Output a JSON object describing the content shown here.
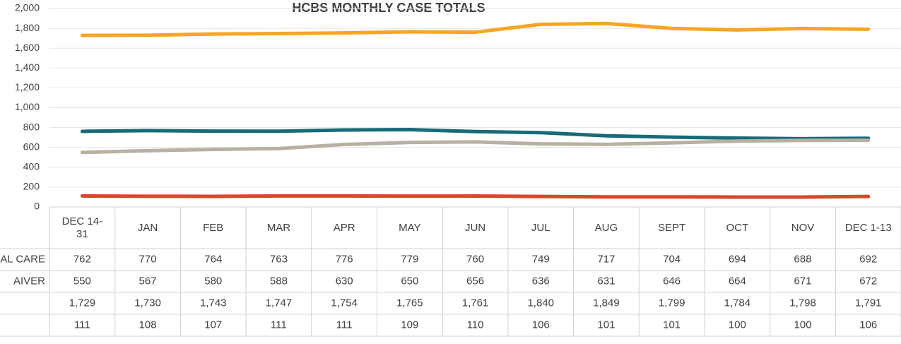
{
  "chart_data": {
    "type": "line",
    "title": "HCBS MONTHLY CASE TOTALS",
    "categories": [
      "DEC 14-31",
      "JAN",
      "FEB",
      "MAR",
      "APR",
      "MAY",
      "JUN",
      "JUL",
      "AUG",
      "SEPT",
      "OCT",
      "NOV",
      "DEC 1-13"
    ],
    "series": [
      {
        "name": "AL CARE",
        "color": "#176b76",
        "values": [
          762,
          770,
          764,
          763,
          776,
          779,
          760,
          749,
          717,
          704,
          694,
          688,
          692
        ]
      },
      {
        "name": "AIVER",
        "color": "#b8b0a3",
        "values": [
          550,
          567,
          580,
          588,
          630,
          650,
          656,
          636,
          631,
          646,
          664,
          671,
          672
        ]
      },
      {
        "name": null,
        "color": "#f6a623",
        "values": [
          1729,
          1730,
          1743,
          1747,
          1754,
          1765,
          1761,
          1840,
          1849,
          1799,
          1784,
          1798,
          1791
        ],
        "value_labels": [
          "1,729",
          "1,730",
          "1,743",
          "1,747",
          "1,754",
          "1,765",
          "1,761",
          "1,840",
          "1,849",
          "1,799",
          "1,784",
          "1,798",
          "1,791"
        ]
      },
      {
        "name": null,
        "color": "#d9472b",
        "values": [
          111,
          108,
          107,
          111,
          111,
          109,
          110,
          106,
          101,
          101,
          100,
          100,
          106
        ]
      }
    ],
    "ylim": [
      0,
      2000
    ],
    "yticks": [
      0,
      200,
      400,
      600,
      800,
      {
        "value": 1000,
        "label": "1,000"
      },
      {
        "value": 1200,
        "label": "1,200"
      },
      {
        "value": 1400,
        "label": "1,400"
      },
      {
        "value": 1600,
        "label": "1,600"
      },
      {
        "value": 1800,
        "label": "1,800"
      },
      {
        "value": 2000,
        "label": "2,000"
      }
    ],
    "grid": true
  }
}
